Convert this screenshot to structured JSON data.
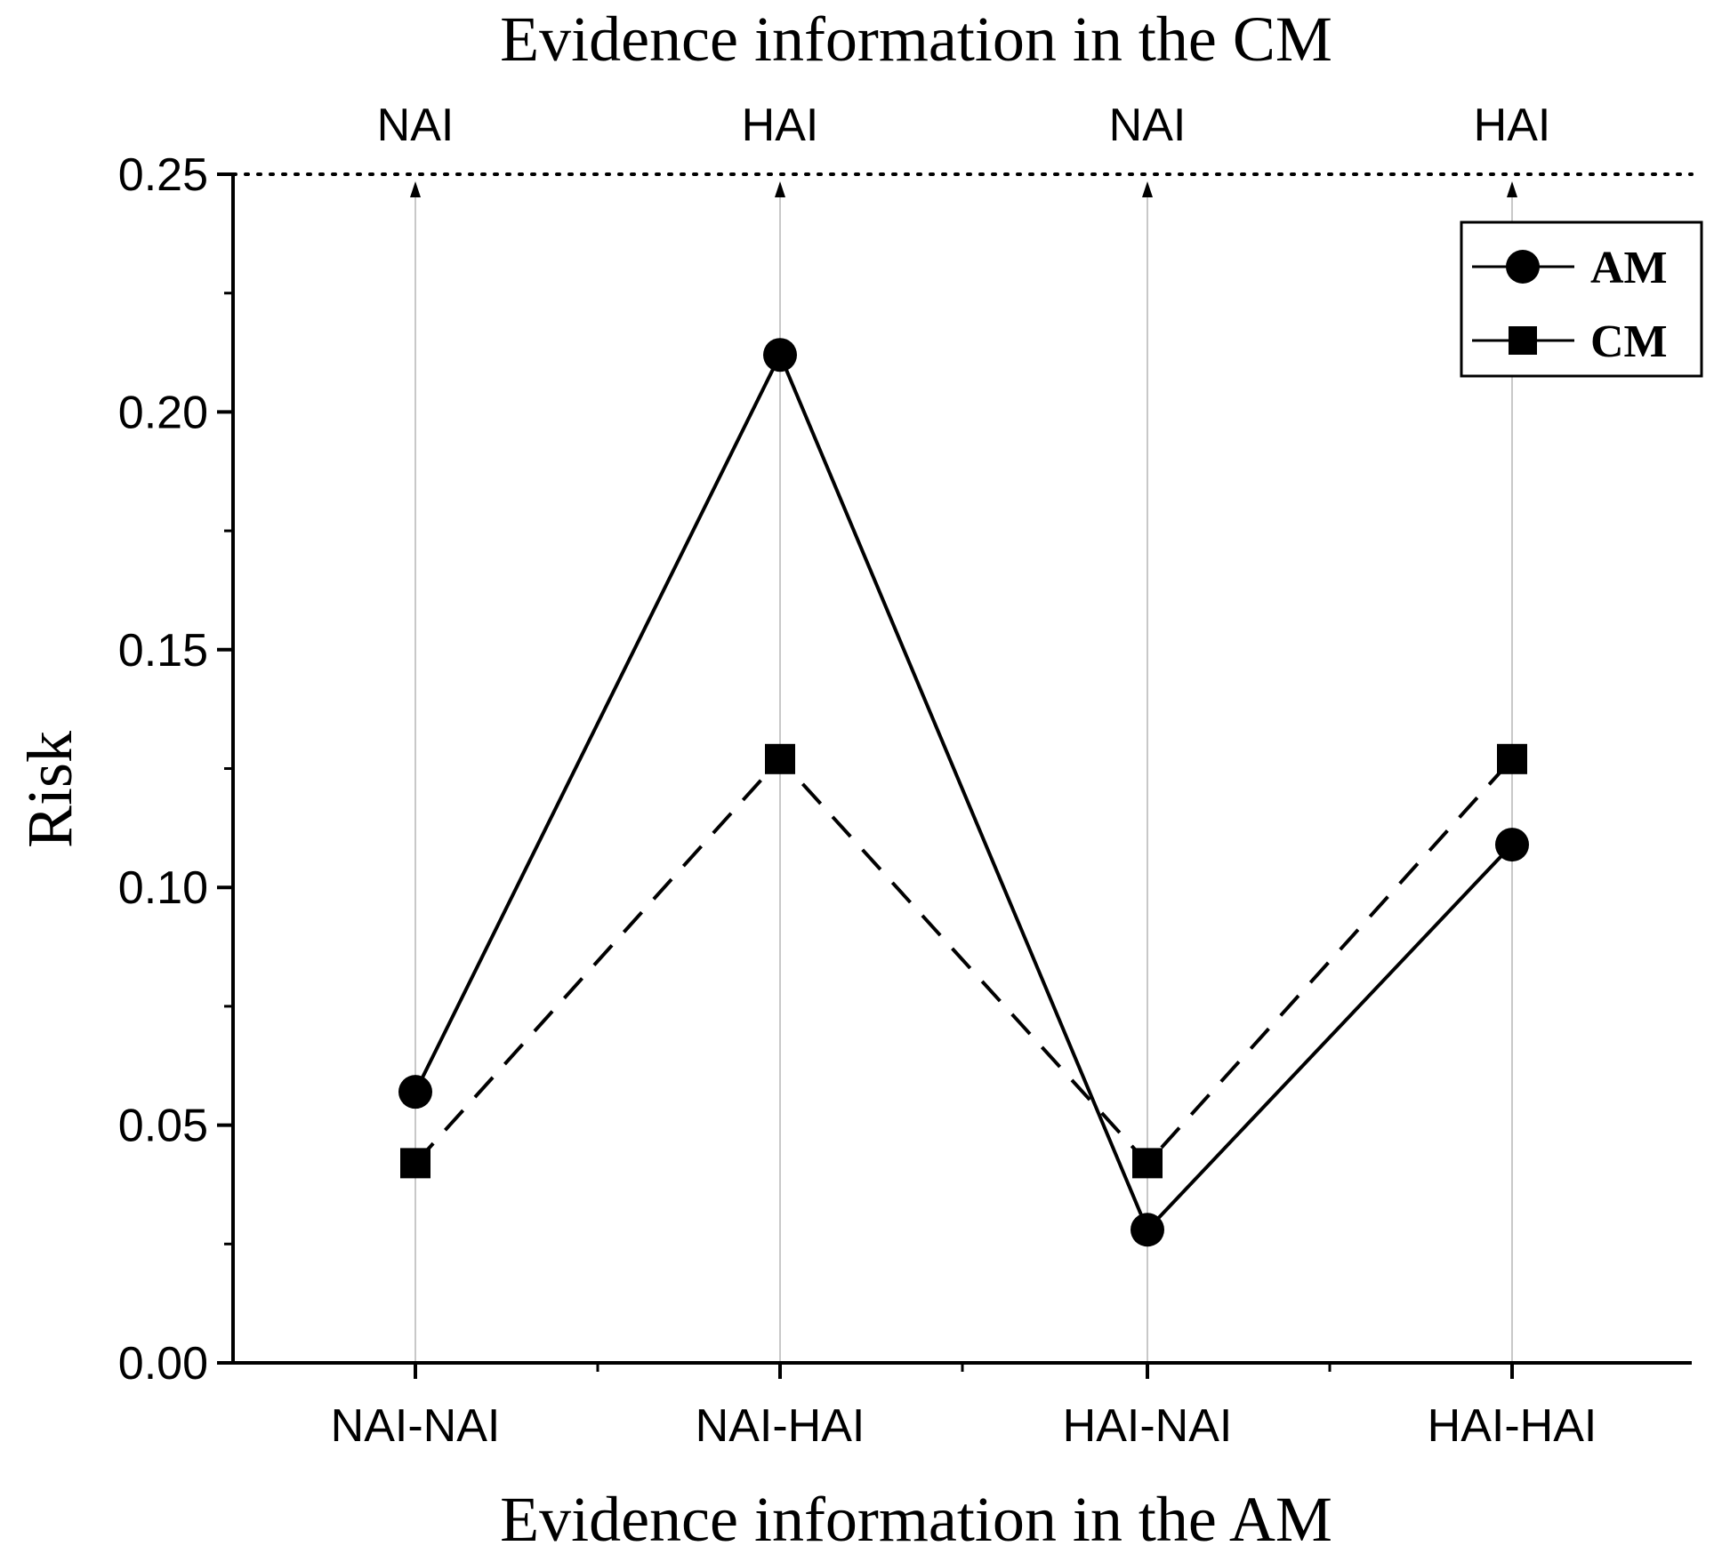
{
  "chart_data": {
    "type": "line",
    "top_title": "Evidence information in the CM",
    "xlabel": "Evidence information in the AM",
    "ylabel": "Risk",
    "categories": [
      "NAI-NAI",
      "NAI-HAI",
      "HAI-NAI",
      "HAI-HAI"
    ],
    "top_categories": [
      "NAI",
      "HAI",
      "NAI",
      "HAI"
    ],
    "ylim": [
      0,
      0.25
    ],
    "yticks": [
      "0.00",
      "0.05",
      "0.10",
      "0.15",
      "0.20",
      "0.25"
    ],
    "series": [
      {
        "name": "AM",
        "marker": "circle",
        "line_style": "solid",
        "values": [
          0.057,
          0.212,
          0.028,
          0.109
        ]
      },
      {
        "name": "CM",
        "marker": "square",
        "line_style": "dashed",
        "values": [
          0.042,
          0.127,
          0.042,
          0.127
        ]
      }
    ],
    "legend_position": "top-right",
    "colors": {
      "line": "#000000",
      "guide": "#c8c8c8",
      "background": "#ffffff"
    }
  }
}
